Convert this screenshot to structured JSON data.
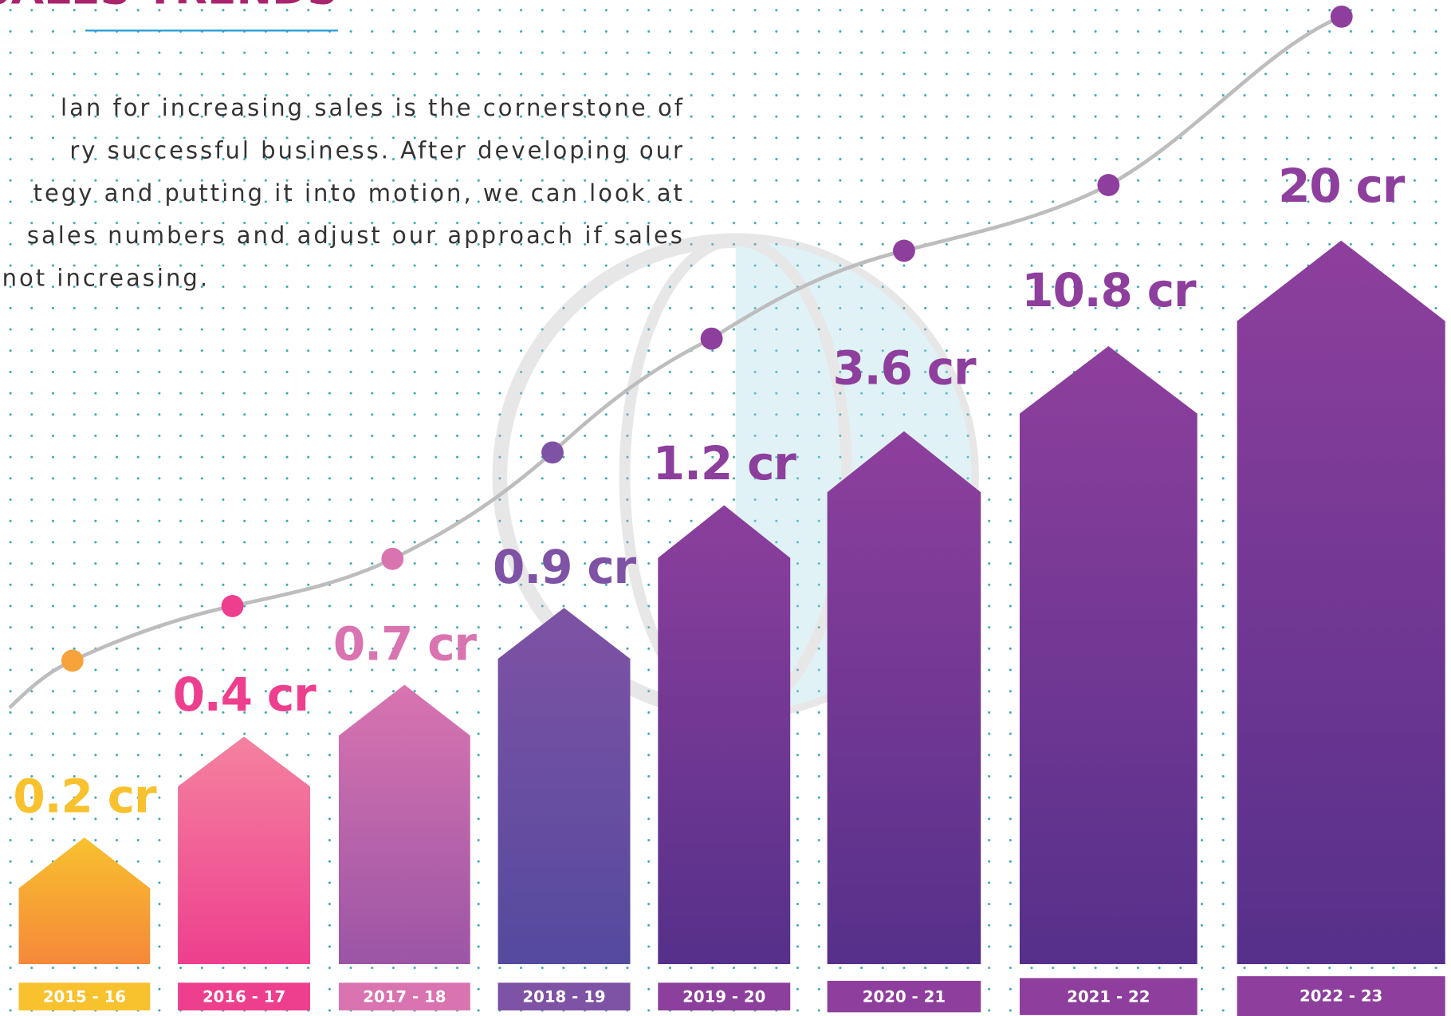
{
  "title": "SALES TRENDS",
  "paragraph": [
    "lan for increasing sales is the cornerstone of",
    "ry successful business. After developing our",
    "tegy and putting it into motion, we can look at",
    "sales numbers and adjust our approach if sales",
    "not increasing."
  ],
  "items": [
    {
      "period": "2015 - 16",
      "label": "0.2 cr",
      "color": "#f8c12e",
      "color2": "#f5883a"
    },
    {
      "period": "2016 - 17",
      "label": "0.4 cr",
      "color": "#f4829f",
      "color2": "#ee3f8e"
    },
    {
      "period": "2017 - 18",
      "label": "0.7 cr",
      "color": "#d974b0",
      "color2": "#9b55a5"
    },
    {
      "period": "2018 - 19",
      "label": "0.9 cr",
      "color": "#7e52a4",
      "color2": "#544a9e"
    },
    {
      "period": "2019 - 20",
      "label": "1.2 cr",
      "color": "#8c3f9c",
      "color2": "#55308a"
    },
    {
      "period": "2020 - 21",
      "label": "3.6 cr",
      "color": "#8e3f9d",
      "color2": "#55308a"
    },
    {
      "period": "2021 - 22",
      "label": "10.8 cr",
      "color": "#8e3f9d",
      "color2": "#55308a"
    },
    {
      "period": "2022 - 23",
      "label": "20 cr",
      "color": "#8e3f9d",
      "color2": "#55308a"
    }
  ]
}
